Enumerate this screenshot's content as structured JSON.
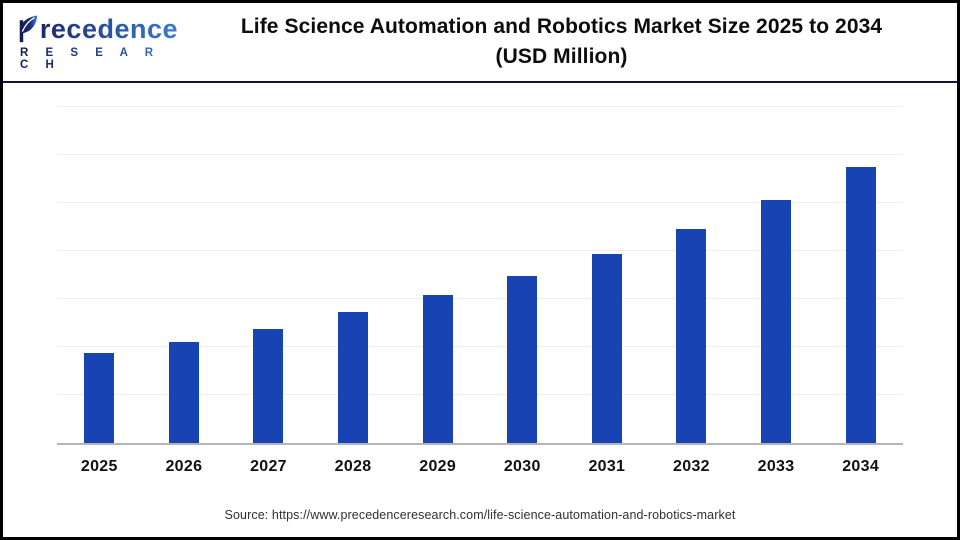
{
  "header": {
    "logo": {
      "brand": "recedence",
      "brand_full": "Precedence",
      "brand_sub": "R E S E A R C H"
    },
    "title_line1": "Life Science Automation and Robotics Market Size 2025 to 2034",
    "title_line2": "(USD Million)"
  },
  "chart_data": {
    "type": "bar",
    "title": "Life Science Automation and Robotics Market Size 2025 to 2034 (USD Million)",
    "unit": "USD Million",
    "categories": [
      "2025",
      "2026",
      "2027",
      "2028",
      "2029",
      "2030",
      "2031",
      "2032",
      "2033",
      "2034"
    ],
    "values": [
      1.88,
      2.1,
      2.38,
      2.73,
      3.08,
      3.48,
      3.94,
      4.46,
      5.06,
      5.75
    ],
    "value_scale_note": "y-axis has no tick labels; values estimated in gridline units (1 unit = 1 gridline interval)",
    "ylim": [
      0,
      7
    ],
    "gridline_count": 7,
    "grid": true,
    "y_tick_labels": [],
    "legend": false,
    "xlabel": "",
    "ylabel": "",
    "bar_color": "#1843b2",
    "gridline_color": "#efeeeb",
    "axis_line_color": "#b5b5b5"
  },
  "footer": {
    "source": "Source: https://www.precedenceresearch.com/life-science-automation-and-robotics-market"
  },
  "colors": {
    "frame_border": "#000000",
    "header_divider": "#11123f",
    "title_text": "#0c0c0c",
    "brand_navy": "#1b2a70",
    "brand_blue": "#3a7ad6"
  }
}
